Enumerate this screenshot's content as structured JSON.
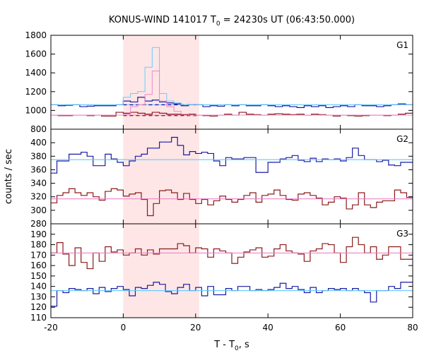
{
  "chart_data": {
    "type": "line",
    "title": "KONUS-WIND 141017 T₀ = 24230s UT (06:43:50.000)",
    "title_pre": "KONUS-WIND 141017 T",
    "title_sub": "0",
    "title_post": " = 24230s UT (06:43:50.000)",
    "xlabel": "T - T₀, s",
    "xlabel_pre": "T - T",
    "xlabel_sub": "0",
    "xlabel_post": ", s",
    "ylabel": "counts / sec",
    "xlim": [
      -20,
      80
    ],
    "x_ticks": [
      -20,
      0,
      20,
      40,
      60,
      80
    ],
    "x_tick_labels": [
      "-20",
      "0",
      "20",
      "40",
      "60",
      "80"
    ],
    "highlight_interval": [
      0,
      21
    ],
    "highlight_color": "#ffe6e6",
    "bin_width": 2,
    "bin_start": -20,
    "panels": [
      {
        "name": "G1",
        "ylim": [
          800,
          1800
        ],
        "y_ticks": [
          800,
          1000,
          1200,
          1400,
          1600,
          1800
        ],
        "y_tick_labels": [
          "800",
          "1000",
          "1200",
          "1400",
          "1600",
          "1800"
        ],
        "series": [
          {
            "color": "#1a1aa6",
            "values": [
              1060,
              1050,
              1055,
              1060,
              1040,
              1045,
              1050,
              1050,
              1050,
              1060,
              1100,
              1090,
              1140,
              1100,
              1110,
              1090,
              1080,
              1070,
              1050,
              1060,
              1060,
              1040,
              1050,
              1045,
              1060,
              1050,
              1060,
              1050,
              1050,
              1060,
              1050,
              1040,
              1050,
              1040,
              1030,
              1050,
              1040,
              1050,
              1030,
              1040,
              1050,
              1040,
              1060,
              1050,
              1050,
              1040,
              1050,
              1060,
              1070,
              1060
            ]
          },
          {
            "color": "#8b1a1a",
            "values": [
              950,
              945,
              945,
              950,
              950,
              945,
              950,
              940,
              940,
              980,
              970,
              980,
              970,
              960,
              980,
              970,
              960,
              960,
              955,
              960,
              950,
              945,
              940,
              950,
              960,
              950,
              980,
              960,
              955,
              950,
              960,
              965,
              960,
              955,
              960,
              950,
              960,
              955,
              950,
              940,
              950,
              945,
              940,
              945,
              950,
              950,
              945,
              950,
              960,
              970
            ]
          },
          {
            "color": "#66ccff",
            "values": [
              1060,
              1060,
              1060,
              1060,
              1060,
              1060,
              1060,
              1060,
              1060,
              1060,
              1140,
              1180,
              1200,
              1460,
              1670,
              1180,
              1100,
              1080,
              1060,
              1060,
              1060,
              1060,
              1060,
              1060,
              1060,
              1060,
              1060,
              1060,
              1060,
              1060,
              1060,
              1060,
              1060,
              1060,
              1060,
              1060,
              1060,
              1060,
              1060,
              1060,
              1060,
              1060,
              1060,
              1060,
              1060,
              1060,
              1060,
              1060,
              1060,
              1060
            ]
          },
          {
            "color": "#ee88cc",
            "values": [
              950,
              950,
              950,
              950,
              950,
              950,
              950,
              950,
              950,
              950,
              960,
              1040,
              1060,
              1170,
              1420,
              1100,
              1040,
              990,
              960,
              950,
              950,
              950,
              950,
              950,
              950,
              950,
              950,
              950,
              950,
              950,
              950,
              950,
              950,
              950,
              950,
              950,
              950,
              950,
              950,
              950,
              950,
              950,
              950,
              950,
              950,
              950,
              950,
              950,
              950,
              950
            ]
          }
        ],
        "levels": [
          {
            "color": "#66ccff",
            "value": 1060,
            "style": "solid"
          },
          {
            "color": "#ee88cc",
            "value": 950,
            "style": "solid"
          },
          {
            "color": "#1a1aa6",
            "value": 1060,
            "style": "dashed",
            "range": [
              0,
              21
            ]
          },
          {
            "color": "#8b1a1a",
            "value": 945,
            "style": "dashed",
            "range": [
              0,
              21
            ]
          }
        ]
      },
      {
        "name": "G2",
        "ylim": [
          280,
          420
        ],
        "y_ticks": [
          280,
          300,
          320,
          340,
          360,
          380,
          400
        ],
        "y_tick_labels": [
          "280",
          "300",
          "320",
          "340",
          "360",
          "380",
          "400"
        ],
        "series": [
          {
            "color": "#1a1aa6",
            "values": [
              355,
              373,
              373,
              383,
              383,
              386,
              380,
              366,
              366,
              383,
              376,
              371,
              366,
              373,
              380,
              383,
              392,
              392,
              401,
              401,
              408,
              396,
              382,
              387,
              384,
              386,
              384,
              373,
              366,
              378,
              376,
              376,
              378,
              378,
              356,
              356,
              371,
              371,
              376,
              378,
              381,
              374,
              372,
              377,
              372,
              376,
              375,
              376,
              373,
              378,
              392,
              381,
              375,
              375,
              372,
              374,
              367,
              366,
              371,
              371
            ]
          },
          {
            "color": "#8b1a1a",
            "values": [
              311,
              322,
              326,
              332,
              326,
              322,
              326,
              320,
              315,
              328,
              332,
              330,
              321,
              324,
              326,
              316,
              292,
              310,
              329,
              330,
              326,
              316,
              325,
              316,
              310,
              316,
              308,
              314,
              321,
              316,
              312,
              316,
              322,
              326,
              312,
              322,
              324,
              330,
              322,
              316,
              315,
              324,
              326,
              322,
              318,
              308,
              312,
              320,
              318,
              302,
              308,
              326,
              308,
              304,
              312,
              314,
              314,
              330,
              326,
              319
            ]
          },
          {
            "color": "#66ccff",
            "values": [
              375,
              375,
              375,
              375,
              375,
              375,
              375,
              375,
              375,
              375,
              375,
              375,
              375,
              375,
              375,
              375,
              375,
              375,
              375,
              375,
              375,
              375,
              375,
              375,
              375,
              375,
              375,
              375,
              375,
              375,
              375,
              375,
              375,
              375,
              375,
              375,
              375,
              375,
              375,
              375,
              375,
              375,
              375,
              375,
              375,
              375,
              375,
              375,
              375,
              375
            ]
          },
          {
            "color": "#ee88cc",
            "values": [
              317,
              317,
              317,
              317,
              317,
              317,
              317,
              317,
              317,
              317,
              317,
              317,
              317,
              317,
              317,
              317,
              317,
              317,
              317,
              317,
              317,
              317,
              317,
              317,
              317,
              317,
              317,
              317,
              317,
              317,
              317,
              317,
              317,
              317,
              317,
              317,
              317,
              317,
              317,
              317,
              317,
              317,
              317,
              317,
              317,
              317,
              317,
              317,
              317,
              317
            ]
          }
        ],
        "levels": [
          {
            "color": "#66ccff",
            "value": 375,
            "style": "solid"
          },
          {
            "color": "#ee88cc",
            "value": 317,
            "style": "solid"
          }
        ]
      },
      {
        "name": "G3",
        "ylim": [
          110,
          200
        ],
        "y_ticks": [
          110,
          120,
          130,
          140,
          150,
          160,
          170,
          180,
          190
        ],
        "y_tick_labels": [
          "110",
          "120",
          "130",
          "140",
          "150",
          "160",
          "170",
          "180",
          "190"
        ],
        "series": [
          {
            "color": "#1a1aa6",
            "values": [
              121,
              136,
              134,
              138,
              137,
              136,
              138,
              133,
              139,
              135,
              138,
              140,
              137,
              131,
              139,
              138,
              141,
              144,
              142,
              135,
              133,
              139,
              142,
              136,
              139,
              131,
              140,
              132,
              132,
              138,
              136,
              140,
              140,
              136,
              137,
              136,
              137,
              139,
              143,
              138,
              140,
              137,
              134,
              139,
              134,
              136,
              138,
              137,
              138,
              136,
              138,
              136,
              134,
              125,
              136,
              136,
              140,
              138,
              144,
              144
            ]
          },
          {
            "color": "#8b1a1a",
            "values": [
              172,
              182,
              171,
              160,
              177,
              163,
              157,
              172,
              164,
              178,
              173,
              175,
              170,
              172,
              176,
              170,
              175,
              171,
              176,
              176,
              176,
              181,
              179,
              172,
              177,
              176,
              168,
              176,
              174,
              172,
              162,
              168,
              173,
              175,
              177,
              168,
              169,
              176,
              180,
              174,
              172,
              171,
              164,
              174,
              176,
              181,
              180,
              172,
              163,
              178,
              187,
              180,
              172,
              178,
              166,
              170,
              178,
              178,
              166,
              166
            ]
          },
          {
            "color": "#66ccff",
            "values": [
              136,
              136,
              136,
              136,
              136,
              136,
              136,
              136,
              136,
              136,
              136,
              136,
              136,
              136,
              136,
              136,
              136,
              136,
              136,
              136,
              136,
              136,
              136,
              136,
              136,
              136,
              136,
              136,
              136,
              136,
              136,
              136,
              136,
              136,
              136,
              136,
              136,
              136,
              136,
              136,
              136,
              136,
              136,
              136,
              136,
              136,
              136,
              136,
              136,
              136
            ]
          },
          {
            "color": "#ee88cc",
            "values": [
              172,
              172,
              172,
              172,
              172,
              172,
              172,
              172,
              172,
              172,
              172,
              172,
              172,
              172,
              172,
              172,
              172,
              172,
              172,
              172,
              172,
              172,
              172,
              172,
              172,
              172,
              172,
              172,
              172,
              172,
              172,
              172,
              172,
              172,
              172,
              172,
              172,
              172,
              172,
              172,
              172,
              172,
              172,
              172,
              172,
              172,
              172,
              172,
              172,
              172
            ]
          }
        ],
        "levels": [
          {
            "color": "#66ccff",
            "value": 136,
            "style": "solid"
          },
          {
            "color": "#ee88cc",
            "value": 172,
            "style": "solid"
          }
        ]
      }
    ]
  }
}
